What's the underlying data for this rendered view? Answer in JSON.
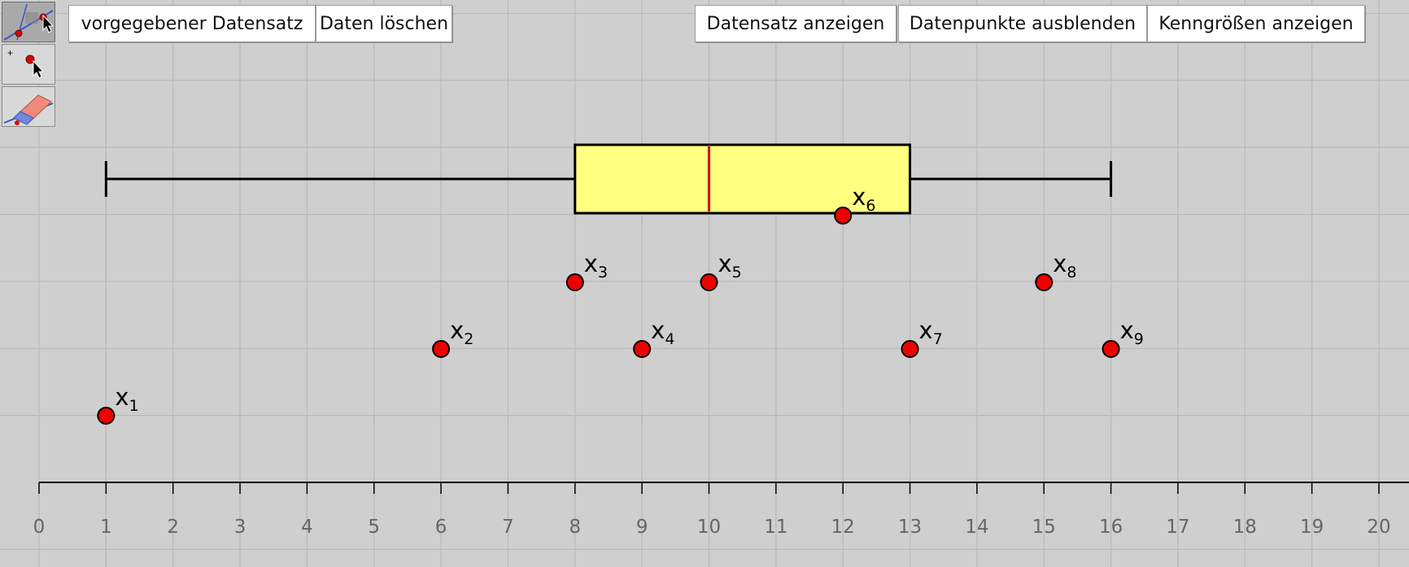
{
  "toolbar": {
    "tools": [
      {
        "name": "move-graphics-view-tool",
        "icon": "move-view-icon"
      },
      {
        "name": "point-tool",
        "icon": "point-icon"
      },
      {
        "name": "eraser-tool",
        "icon": "eraser-icon"
      }
    ]
  },
  "buttons": {
    "preset_dataset": "vorgegebener Datensatz",
    "delete_data": "Daten löschen",
    "show_dataset": "Datensatz anzeigen",
    "hide_datapoints": "Datenpunkte ausblenden",
    "show_statistics": "Kenngrößen anzeigen"
  },
  "colors": {
    "background": "#cfcfcf",
    "grid": "#b8b8b8",
    "box_fill": "#ffff80",
    "median": "#e00000",
    "point": "#ee0000"
  },
  "chart_data": {
    "type": "scatter",
    "x_axis": {
      "min": -0.6,
      "max": 20.4,
      "ticks": [
        0,
        1,
        2,
        3,
        4,
        5,
        6,
        7,
        8,
        9,
        10,
        11,
        12,
        13,
        14,
        15,
        16,
        17,
        18,
        19,
        20
      ]
    },
    "boxplot": {
      "min": 1,
      "q1": 8,
      "median": 10,
      "q3": 13,
      "max": 16
    },
    "points": [
      {
        "label": "x",
        "sub": "1",
        "x": 1,
        "level": 1
      },
      {
        "label": "x",
        "sub": "2",
        "x": 6,
        "level": 2
      },
      {
        "label": "x",
        "sub": "3",
        "x": 8,
        "level": 3
      },
      {
        "label": "x",
        "sub": "4",
        "x": 9,
        "level": 2
      },
      {
        "label": "x",
        "sub": "5",
        "x": 10,
        "level": 3
      },
      {
        "label": "x",
        "sub": "6",
        "x": 12,
        "level": 4
      },
      {
        "label": "x",
        "sub": "7",
        "x": 13,
        "level": 2
      },
      {
        "label": "x",
        "sub": "8",
        "x": 15,
        "level": 3
      },
      {
        "label": "x",
        "sub": "9",
        "x": 16,
        "level": 2
      }
    ]
  }
}
